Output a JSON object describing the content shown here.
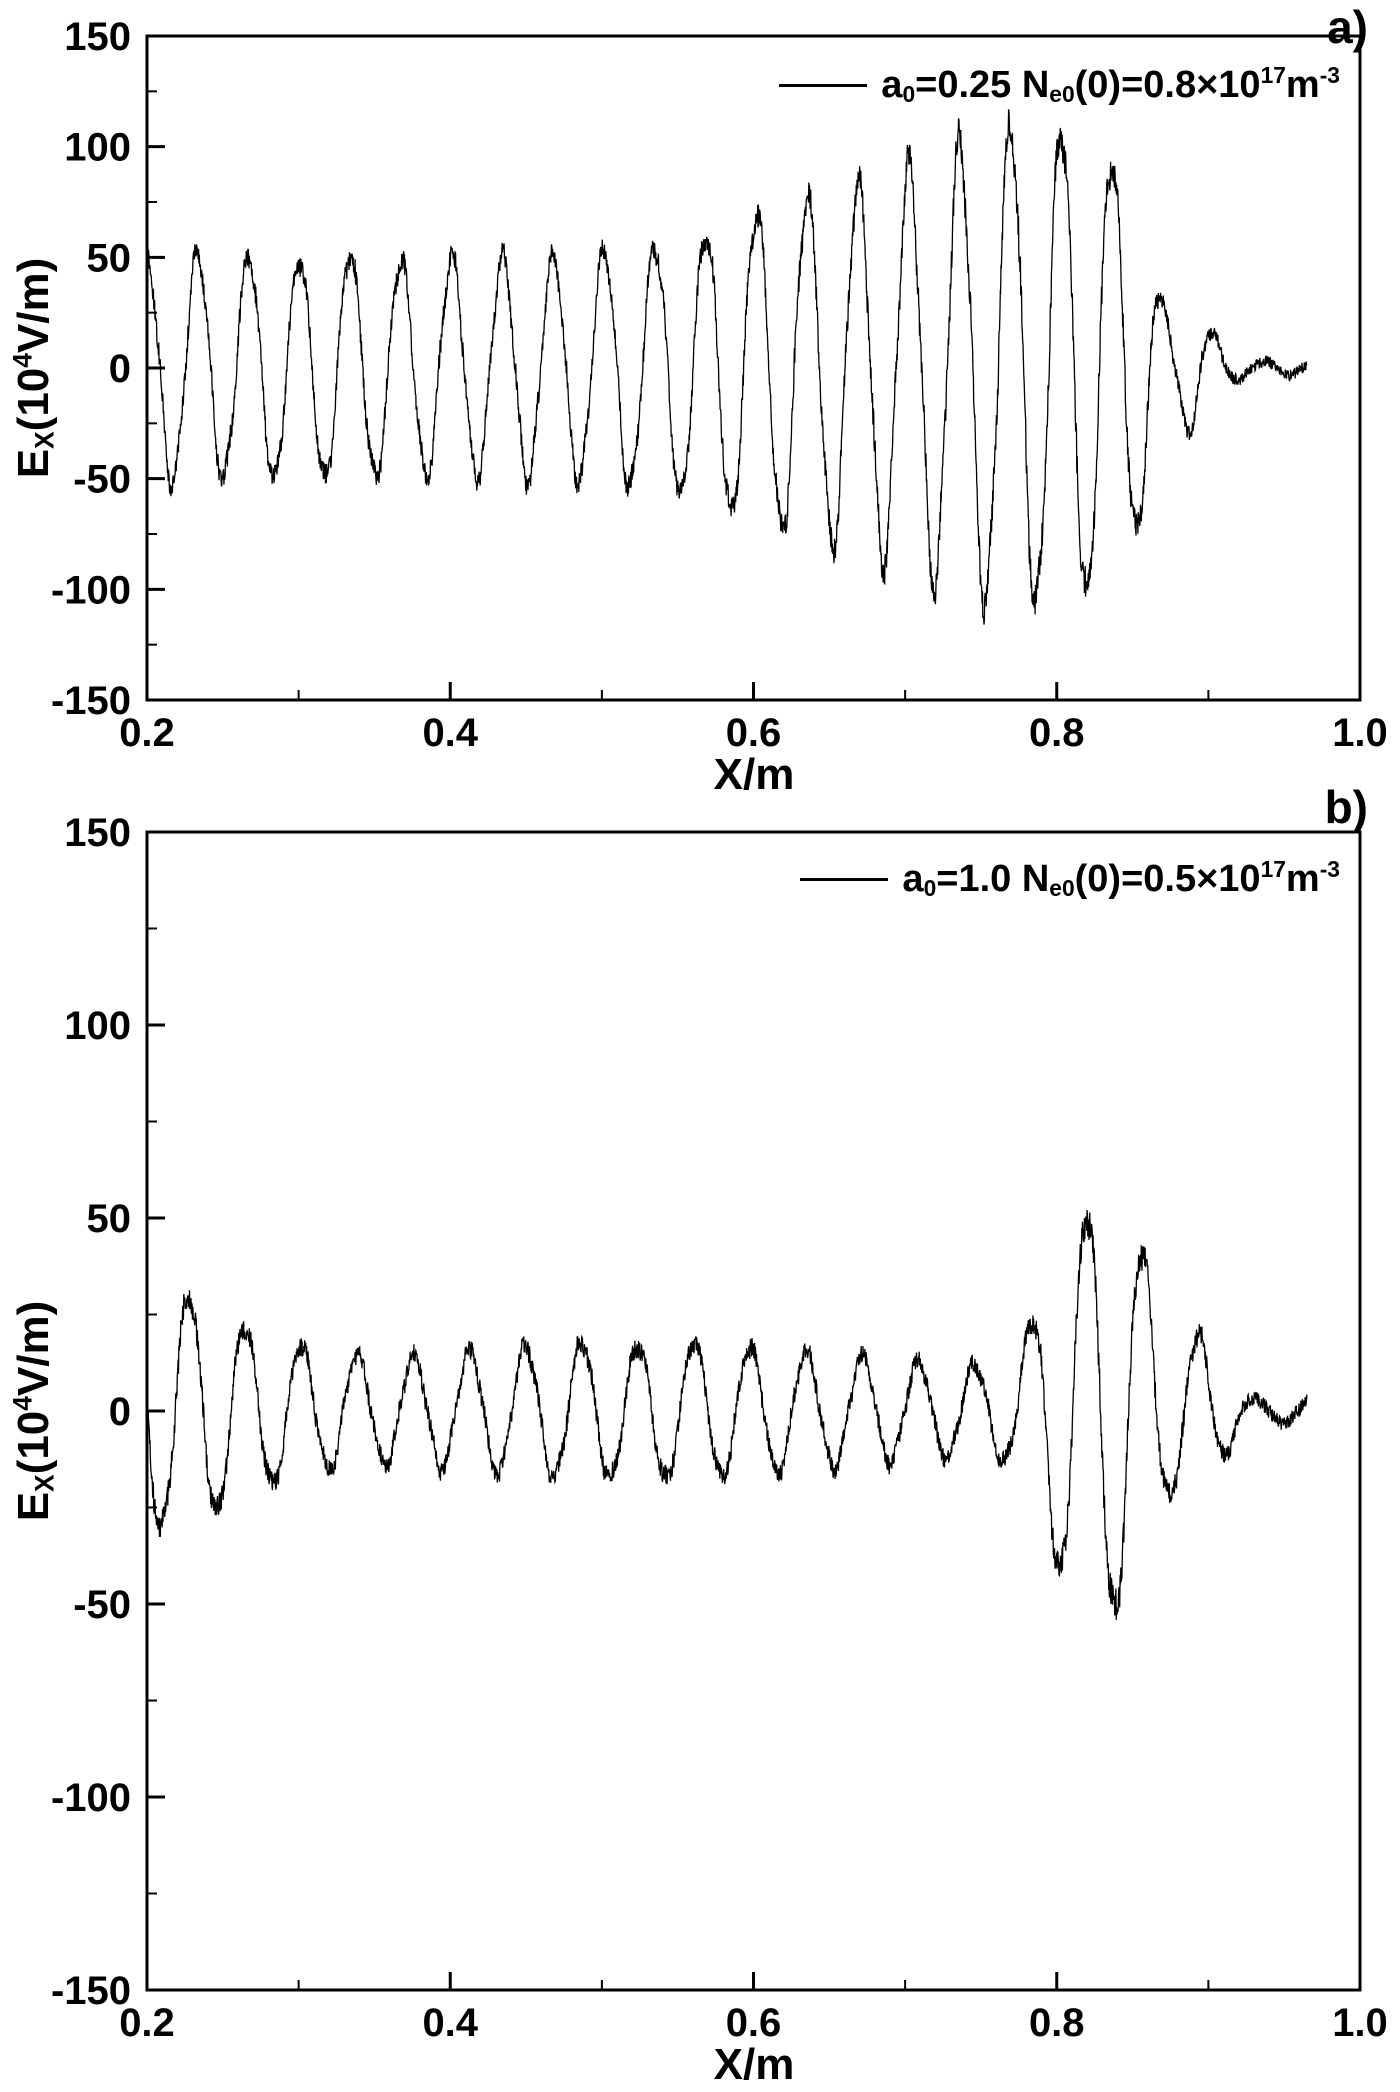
{
  "figure": {
    "background": "#ffffff",
    "line_color": "#000000"
  },
  "chart_data": [
    {
      "type": "line",
      "panel_label": "a)",
      "xlabel": "X/m",
      "ylabel_segments": [
        {
          "t": "E"
        },
        {
          "t": "X",
          "sub": true
        },
        {
          "t": "(10"
        },
        {
          "t": "4",
          "sup": true
        },
        {
          "t": "V/m)"
        }
      ],
      "legend_segments": [
        {
          "t": "a"
        },
        {
          "t": "0",
          "sub": true
        },
        {
          "t": "=0.25 N"
        },
        {
          "t": "e0",
          "sub": true
        },
        {
          "t": "(0)=0.8×10"
        },
        {
          "t": "17",
          "sup": true
        },
        {
          "t": "m"
        },
        {
          "t": "-3",
          "sup": true
        }
      ],
      "legend_position": "top-right",
      "grid": false,
      "xlim": [
        0.2,
        1.0
      ],
      "ylim": [
        -150,
        150
      ],
      "xticks": [
        0.2,
        0.4,
        0.6,
        0.8,
        1.0
      ],
      "xtick_labels": [
        "0.2",
        "0.4",
        "0.6",
        "0.8",
        "1.0"
      ],
      "yticks": [
        150,
        100,
        50,
        0,
        -50,
        -100,
        -150
      ],
      "ytick_labels": [
        "150",
        "100",
        "50",
        "0",
        "-50",
        "-100",
        "-150"
      ],
      "waveform": {
        "x_start": 0.2,
        "x_end": 0.965,
        "period": 0.0335,
        "phase": 1.5708,
        "noise": 2.4,
        "envelope": [
          [
            0.2,
            50
          ],
          [
            0.225,
            53
          ],
          [
            0.25,
            50
          ],
          [
            0.275,
            51
          ],
          [
            0.3,
            49
          ],
          [
            0.325,
            52
          ],
          [
            0.35,
            50
          ],
          [
            0.375,
            48
          ],
          [
            0.4,
            50
          ],
          [
            0.425,
            49
          ],
          [
            0.45,
            51
          ],
          [
            0.475,
            50
          ],
          [
            0.5,
            53
          ],
          [
            0.525,
            54
          ],
          [
            0.55,
            57
          ],
          [
            0.575,
            63
          ],
          [
            0.6,
            70
          ],
          [
            0.625,
            75
          ],
          [
            0.65,
            79
          ],
          [
            0.675,
            84
          ],
          [
            0.7,
            90
          ],
          [
            0.72,
            97
          ],
          [
            0.74,
            103
          ],
          [
            0.76,
            108
          ],
          [
            0.775,
            110
          ],
          [
            0.79,
            106
          ],
          [
            0.805,
            109
          ],
          [
            0.82,
            103
          ],
          [
            0.835,
            96
          ],
          [
            0.85,
            82
          ],
          [
            0.858,
            65
          ],
          [
            0.865,
            45
          ],
          [
            0.872,
            25
          ],
          [
            0.878,
            16
          ],
          [
            0.886,
            30
          ],
          [
            0.894,
            26
          ],
          [
            0.902,
            17
          ],
          [
            0.91,
            10
          ],
          [
            0.918,
            6
          ],
          [
            0.926,
            3
          ],
          [
            0.965,
            3
          ]
        ]
      }
    },
    {
      "type": "line",
      "panel_label": "b)",
      "xlabel": "X/m",
      "ylabel_segments": [
        {
          "t": "E"
        },
        {
          "t": "X",
          "sub": true
        },
        {
          "t": "(10"
        },
        {
          "t": "4",
          "sup": true
        },
        {
          "t": "V/m)"
        }
      ],
      "legend_segments": [
        {
          "t": "a"
        },
        {
          "t": "0",
          "sub": true
        },
        {
          "t": "=1.0 N"
        },
        {
          "t": "e0",
          "sub": true
        },
        {
          "t": "(0)=0.5×10"
        },
        {
          "t": "17",
          "sup": true
        },
        {
          "t": "m"
        },
        {
          "t": "-3",
          "sup": true
        }
      ],
      "legend_position": "top-right",
      "grid": false,
      "xlim": [
        0.2,
        1.0
      ],
      "ylim": [
        -150,
        150
      ],
      "xticks": [
        0.2,
        0.4,
        0.6,
        0.8,
        1.0
      ],
      "xtick_labels": [
        "0.2",
        "0.4",
        "0.6",
        "0.8",
        "1.0"
      ],
      "yticks": [
        150,
        100,
        50,
        0,
        -50,
        -100,
        -150
      ],
      "ytick_labels": [
        "150",
        "100",
        "50",
        "0",
        "-50",
        "-100",
        "-150"
      ],
      "waveform": {
        "x_start": 0.2,
        "x_end": 0.965,
        "period": 0.037,
        "phase": -3.1416,
        "noise": 1.8,
        "envelope": [
          [
            0.2,
            30
          ],
          [
            0.225,
            31
          ],
          [
            0.245,
            27
          ],
          [
            0.265,
            22
          ],
          [
            0.285,
            19
          ],
          [
            0.31,
            16
          ],
          [
            0.34,
            14
          ],
          [
            0.37,
            14
          ],
          [
            0.4,
            15
          ],
          [
            0.43,
            16
          ],
          [
            0.46,
            17
          ],
          [
            0.49,
            18
          ],
          [
            0.52,
            17
          ],
          [
            0.55,
            18
          ],
          [
            0.58,
            17
          ],
          [
            0.61,
            16
          ],
          [
            0.64,
            15
          ],
          [
            0.67,
            14
          ],
          [
            0.7,
            13
          ],
          [
            0.725,
            12
          ],
          [
            0.75,
            12
          ],
          [
            0.77,
            14
          ],
          [
            0.785,
            25
          ],
          [
            0.8,
            42
          ],
          [
            0.815,
            50
          ],
          [
            0.83,
            55
          ],
          [
            0.845,
            52
          ],
          [
            0.857,
            42
          ],
          [
            0.868,
            28
          ],
          [
            0.878,
            20
          ],
          [
            0.888,
            22
          ],
          [
            0.897,
            19
          ],
          [
            0.906,
            15
          ],
          [
            0.914,
            10
          ],
          [
            0.922,
            5
          ],
          [
            0.93,
            3
          ],
          [
            0.965,
            3
          ]
        ]
      }
    }
  ]
}
